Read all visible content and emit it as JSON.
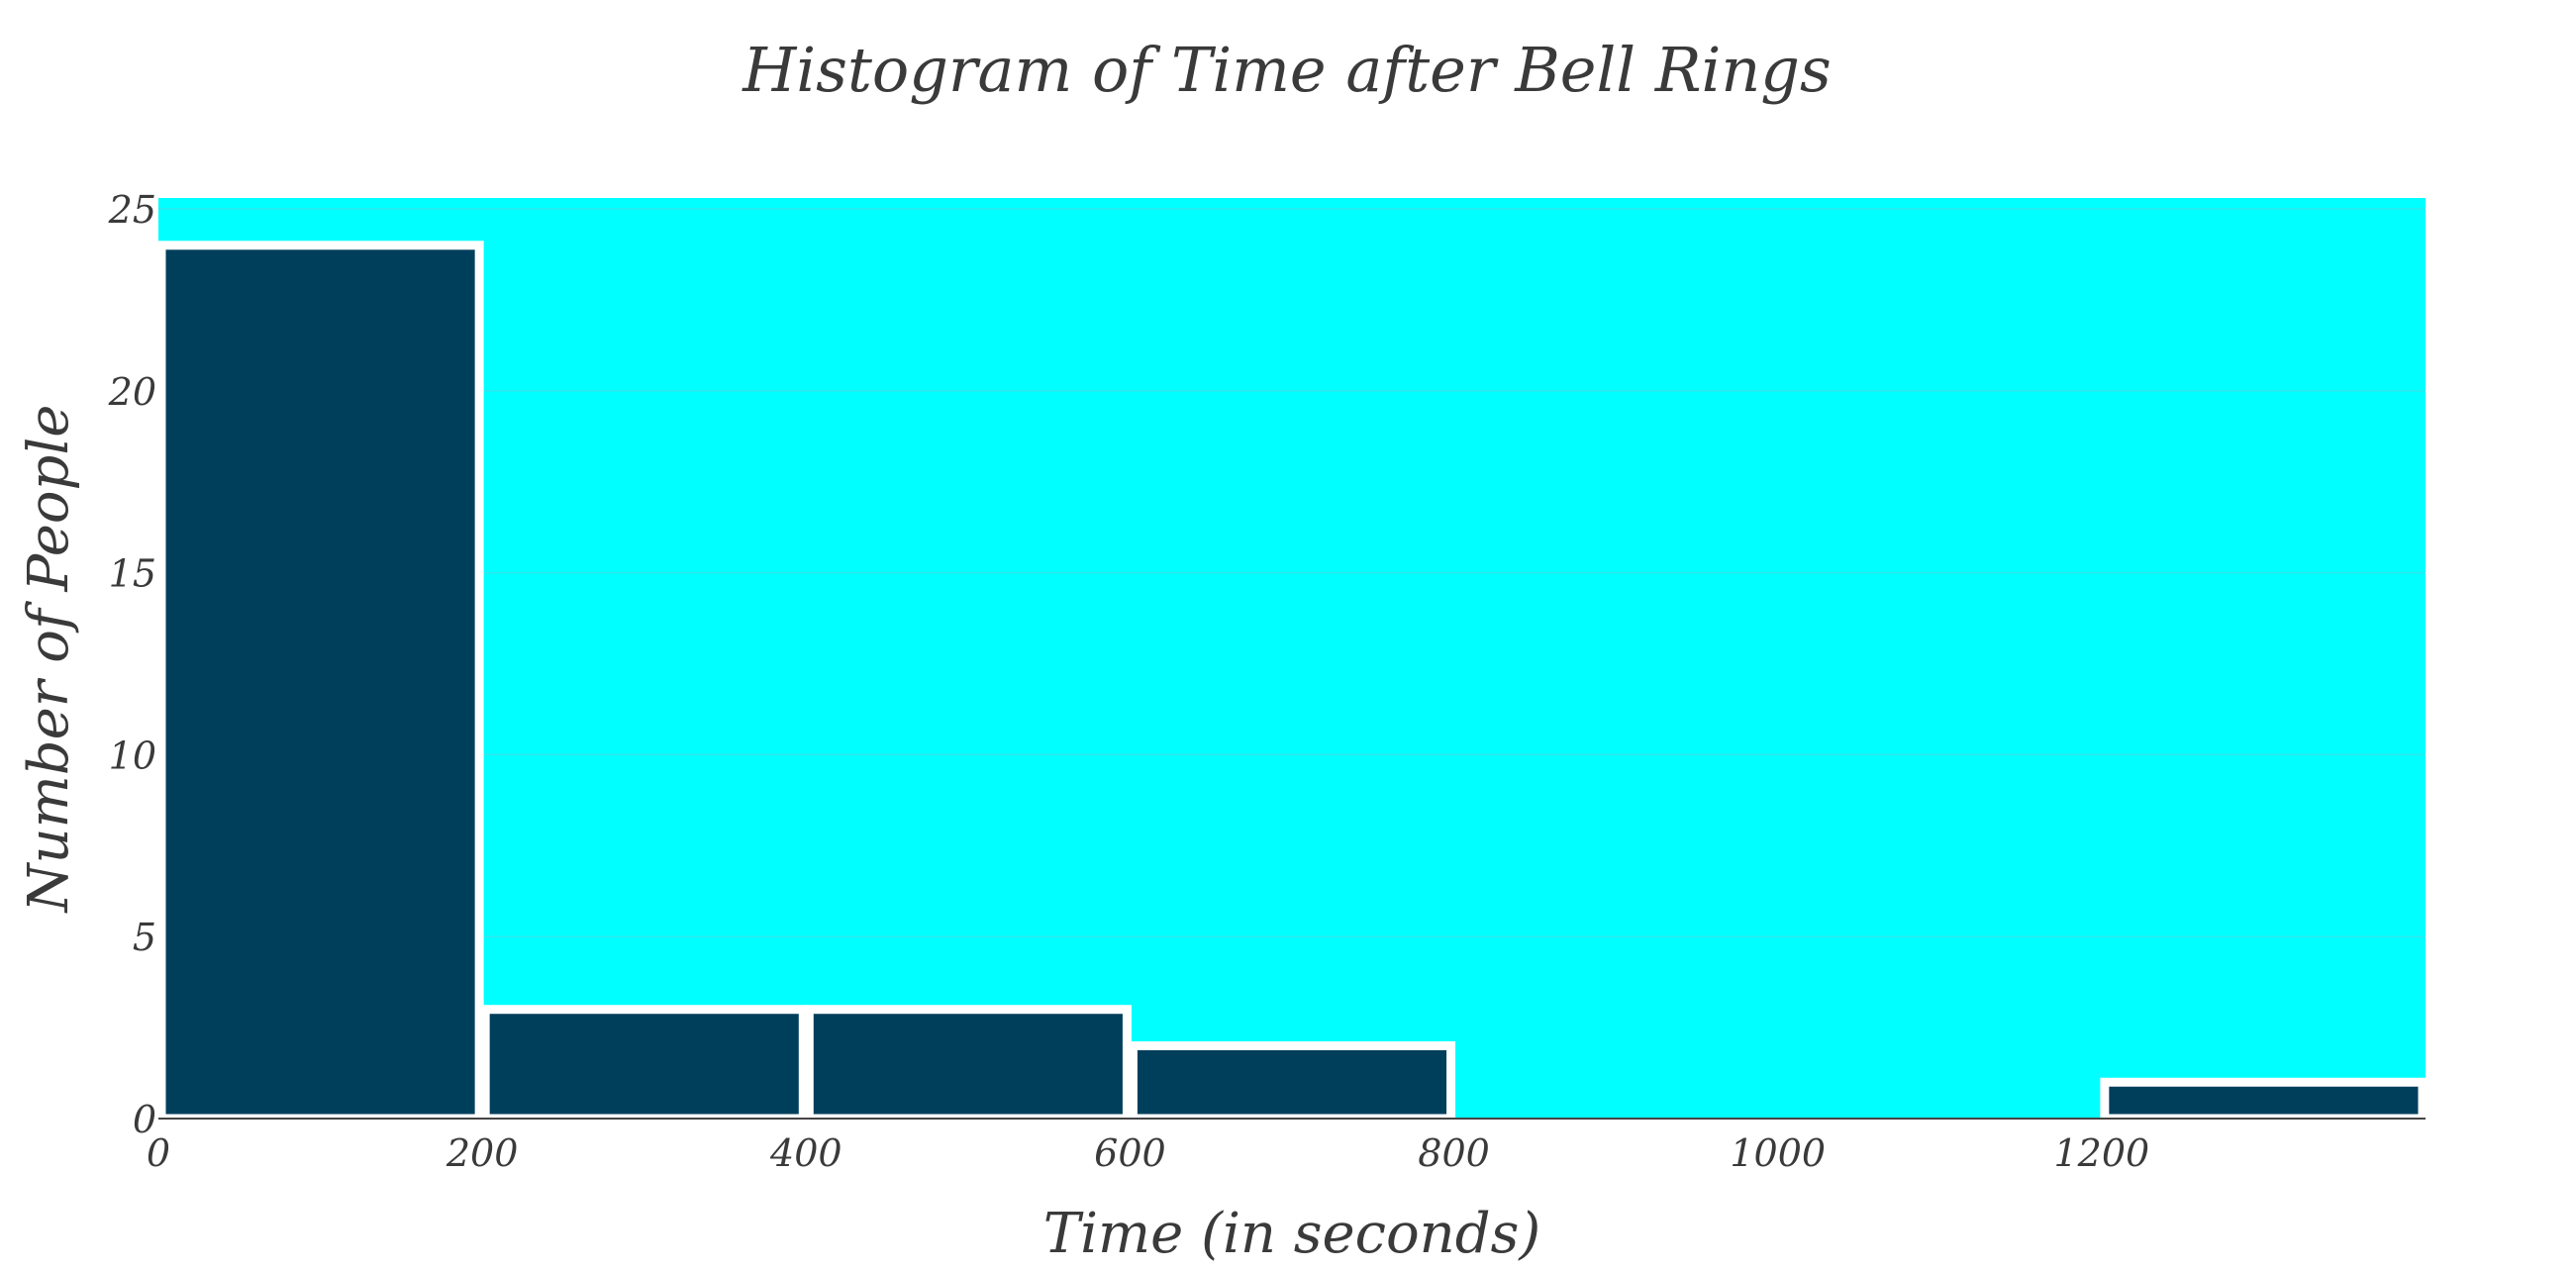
{
  "chart_data": {
    "type": "bar",
    "title": "Histogram of Time after Bell Rings",
    "xlabel": "Time (in seconds)",
    "ylabel": "Number of People",
    "bins": [
      {
        "start": 0,
        "end": 200,
        "count": 24
      },
      {
        "start": 200,
        "end": 400,
        "count": 3
      },
      {
        "start": 400,
        "end": 600,
        "count": 3
      },
      {
        "start": 600,
        "end": 800,
        "count": 2
      },
      {
        "start": 800,
        "end": 1000,
        "count": 0
      },
      {
        "start": 1000,
        "end": 1200,
        "count": 0
      },
      {
        "start": 1200,
        "end": 1400,
        "count": 1
      }
    ],
    "xlim": [
      0,
      1400
    ],
    "ylim": [
      0,
      25.3
    ],
    "xticks": [
      "0",
      "200",
      "400",
      "600",
      "800",
      "1000",
      "1200"
    ],
    "yticks": [
      "0",
      "5",
      "10",
      "15",
      "20",
      "25"
    ],
    "xtick_values": [
      0,
      200,
      400,
      600,
      800,
      1000,
      1200
    ],
    "ytick_values": [
      0,
      5,
      10,
      15,
      20,
      25
    ],
    "grid": true,
    "colors": {
      "plot_background": "#00ffff",
      "bar_fill": "#003f5c",
      "bar_outline": "#ffffff",
      "gridline": "#2ee8ee",
      "text": "#3a3a3a"
    }
  }
}
